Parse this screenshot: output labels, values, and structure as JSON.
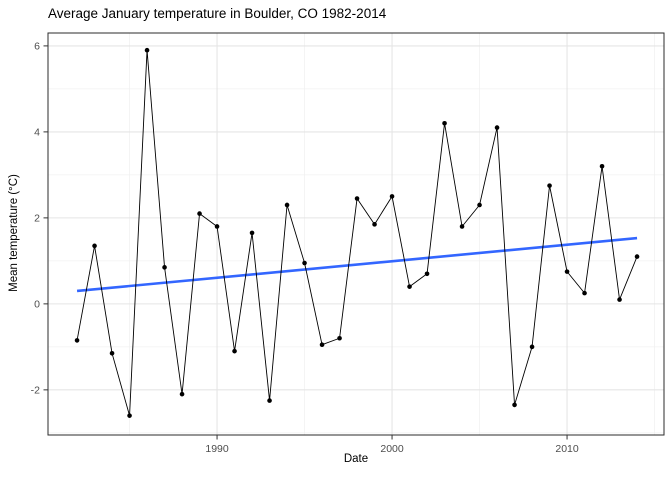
{
  "chart_data": {
    "type": "line",
    "title": "Average January temperature in Boulder, CO 1982-2014",
    "xlabel": "Date",
    "ylabel": "Mean temperature (°C)",
    "x": [
      1982,
      1983,
      1984,
      1985,
      1986,
      1987,
      1988,
      1989,
      1990,
      1991,
      1992,
      1993,
      1994,
      1995,
      1996,
      1997,
      1998,
      1999,
      2000,
      2001,
      2002,
      2003,
      2004,
      2005,
      2006,
      2007,
      2008,
      2009,
      2010,
      2011,
      2012,
      2013,
      2014
    ],
    "values": [
      -0.85,
      1.35,
      -1.15,
      -2.6,
      5.9,
      0.85,
      -2.1,
      2.1,
      1.8,
      -1.1,
      1.65,
      -2.25,
      2.3,
      0.95,
      -0.95,
      -0.8,
      2.45,
      1.85,
      2.5,
      0.4,
      0.7,
      4.2,
      1.8,
      2.3,
      4.1,
      -2.35,
      -1.0,
      2.75,
      0.75,
      0.25,
      3.2,
      0.1,
      1.1
    ],
    "trend": {
      "kind": "linear-regression-line",
      "x": [
        1982,
        2014
      ],
      "y": [
        0.3,
        1.53
      ],
      "color": "#3366FF"
    },
    "axes": {
      "x": {
        "label": "Date",
        "min": 1980.34,
        "max": 2015.54,
        "major_ticks": [
          1990,
          2000,
          2010
        ],
        "minor_gridlines": [
          1985,
          1995,
          2005,
          2015
        ]
      },
      "y": {
        "label": "Mean temperature (°C)",
        "min": -3.05,
        "max": 6.3,
        "major_ticks": [
          -2,
          0,
          2,
          4,
          6
        ],
        "minor_gridlines": [
          -3,
          -1,
          1,
          3,
          5
        ]
      }
    },
    "grid": true,
    "legend": false,
    "style": {
      "point_color": "#000000",
      "line_color": "#000000",
      "panel_background": "#ffffff",
      "panel_border_color": "#2b2b2b",
      "grid_major_color": "#e5e5e5",
      "grid_minor_color": "#f1f1f1",
      "tick_label_color": "#4d4d4d",
      "tick_mark_color": "#333333"
    }
  }
}
